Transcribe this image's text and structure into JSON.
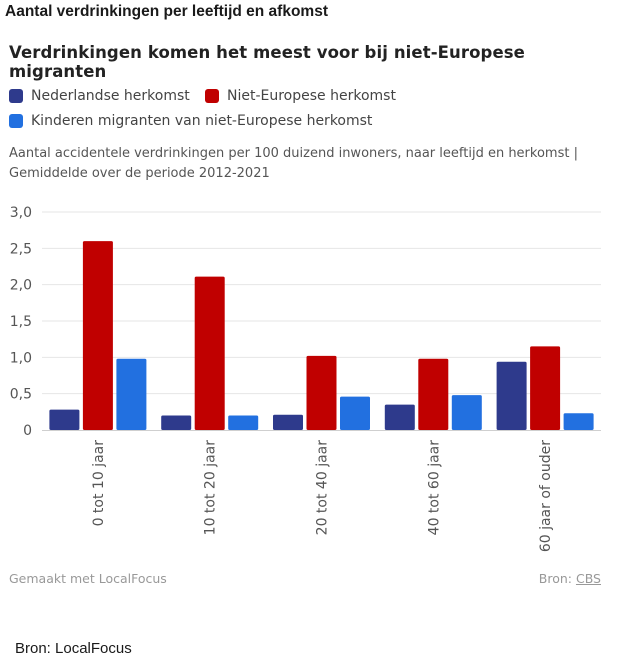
{
  "page_title": "Aantal verdrinkingen per leeftijd en afkomst",
  "page_source": "Bron: LocalFocus",
  "chart_data": {
    "type": "bar",
    "title": "Verdrinkingen komen het meest voor bij niet-Europese migranten",
    "subtitle": "Aantal accidentele verdrinkingen per 100 duizend inwoners, naar leeftijd en herkomst | Gemiddelde over de periode 2012-2021",
    "categories": [
      "0 tot 10 jaar",
      "10 tot 20 jaar",
      "20 tot 40 jaar",
      "40 tot 60 jaar",
      "60 jaar of ouder"
    ],
    "series": [
      {
        "name": "Nederlandse herkomst",
        "color": "#2e3a8c",
        "values": [
          0.28,
          0.2,
          0.21,
          0.35,
          0.94
        ]
      },
      {
        "name": "Niet-Europese herkomst",
        "color": "#c00000",
        "values": [
          2.6,
          2.11,
          1.02,
          0.98,
          1.15
        ]
      },
      {
        "name": "Kinderen migranten van niet-Europese herkomst",
        "color": "#2270e0",
        "values": [
          0.98,
          0.2,
          0.46,
          0.48,
          0.23
        ]
      }
    ],
    "ylim": [
      0,
      3
    ],
    "yticks": [
      "0",
      "0,5",
      "1,0",
      "1,5",
      "2,0",
      "2,5",
      "3,0"
    ],
    "grid": true,
    "legend_position": "top-left"
  },
  "footer": {
    "made_with": "Gemaakt met LocalFocus",
    "source_label": "Bron:",
    "source_link": "CBS"
  }
}
